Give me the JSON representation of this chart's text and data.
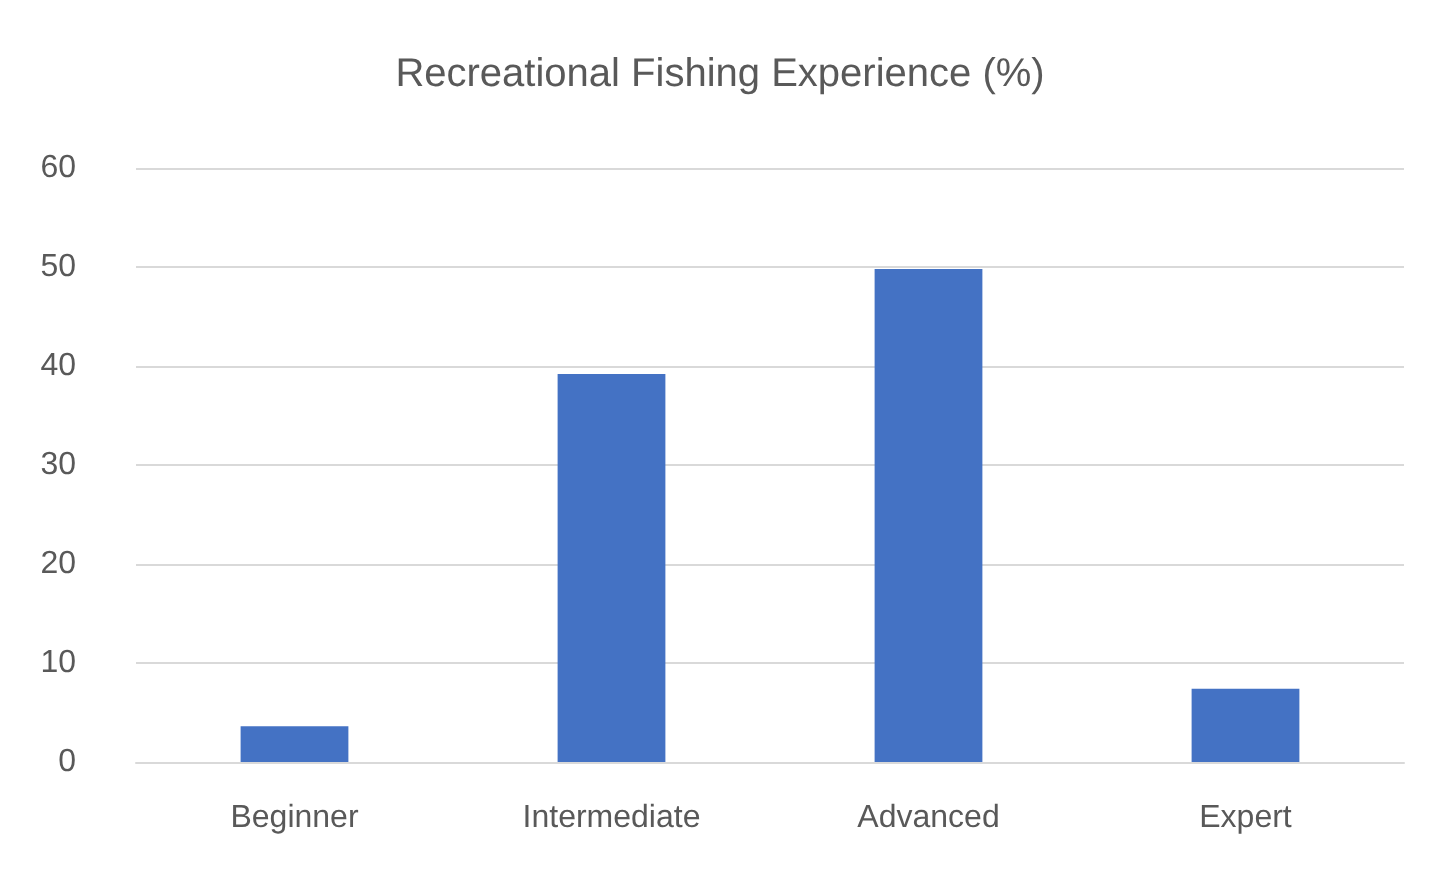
{
  "chart_data": {
    "type": "bar",
    "title": "Recreational Fishing Experience (%)",
    "categories": [
      "Beginner",
      "Intermediate",
      "Advanced",
      "Expert"
    ],
    "values": [
      3.6,
      39.2,
      49.8,
      7.4
    ],
    "color": "#4472c4",
    "ylim": [
      0,
      60
    ],
    "yticks": [
      0,
      10,
      20,
      30,
      40,
      50,
      60
    ],
    "grid": "y"
  }
}
